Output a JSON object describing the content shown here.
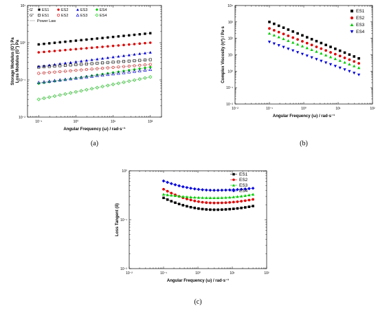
{
  "colors": {
    "ES1": "#000000",
    "ES2": "#e00000",
    "ES3": "#00cc00",
    "ES4": "#0000dd"
  },
  "chart_data": [
    {
      "id": "a",
      "type": "scatter",
      "caption": "(a)",
      "xlabel": "Angular Frequency (ω) / rad·s⁻¹",
      "ylabel_lines": [
        "Storage Modulus (G') Pa",
        "Loss Modulus (G\") Pa"
      ],
      "x_scale": "log",
      "y_scale": "log",
      "xlim": [
        0.05,
        200
      ],
      "ylim": [
        0.01,
        10
      ],
      "x_ticks": [
        "10⁻¹",
        "10⁰",
        "10¹",
        "10²"
      ],
      "y_ticks": [
        "10⁻²",
        "10⁻¹",
        "10⁰",
        "10¹"
      ],
      "legend": {
        "row_labels": [
          "G'",
          "G\""
        ],
        "series_names": [
          "ES1",
          "ES2",
          "ES3",
          "ES4"
        ],
        "power_law_label": "Power Law",
        "placement": "top-left"
      },
      "series": [
        {
          "name": "ES1",
          "modulus": "G'",
          "marker": "square-filled",
          "color": "#000000",
          "x_range": [
            0.1,
            100
          ],
          "y_range": [
            0.9,
            1.8
          ]
        },
        {
          "name": "ES2",
          "modulus": "G'",
          "marker": "circle-filled",
          "color": "#e00000",
          "x_range": [
            0.1,
            100
          ],
          "y_range": [
            0.55,
            1.0
          ]
        },
        {
          "name": "ES3",
          "modulus": "G'",
          "marker": "triangle-filled",
          "color": "#0000dd",
          "x_range": [
            0.1,
            100
          ],
          "y_range": [
            0.23,
            0.55
          ]
        },
        {
          "name": "ES4",
          "modulus": "G'",
          "marker": "diamond-filled",
          "color": "#00cc00",
          "x_range": [
            0.1,
            100
          ],
          "y_range": [
            0.08,
            0.22
          ]
        },
        {
          "name": "ES1",
          "modulus": "G\"",
          "marker": "square-open",
          "color": "#000000",
          "x_range": [
            0.1,
            100
          ],
          "y_range": [
            0.22,
            0.35
          ]
        },
        {
          "name": "ES2",
          "modulus": "G\"",
          "marker": "circle-open",
          "color": "#e00000",
          "x_range": [
            0.1,
            100
          ],
          "y_range": [
            0.15,
            0.26
          ]
        },
        {
          "name": "ES3",
          "modulus": "G\"",
          "marker": "triangle-open",
          "color": "#0000dd",
          "x_range": [
            0.1,
            100
          ],
          "y_range": [
            0.085,
            0.19
          ]
        },
        {
          "name": "ES4",
          "modulus": "G\"",
          "marker": "diamond-open",
          "color": "#00cc00",
          "x_range": [
            0.1,
            100
          ],
          "y_range": [
            0.03,
            0.12
          ]
        }
      ]
    },
    {
      "id": "b",
      "type": "scatter",
      "caption": "(b)",
      "xlabel": "Angular Frequency (ω) / rad·s⁻¹",
      "ylabel": "Complex Viscosity (η*) / Pa·s",
      "x_scale": "log",
      "y_scale": "log",
      "xlim": [
        0.01,
        100
      ],
      "ylim": [
        0.01,
        10000
      ],
      "x_ticks": [
        "10⁻²",
        "10⁻¹",
        "10⁰",
        "10¹",
        "10²"
      ],
      "y_ticks": [
        "10⁻²",
        "10⁻¹",
        "10⁰",
        "10¹",
        "10²",
        "10³",
        "10⁴"
      ],
      "legend": {
        "placement": "top-right"
      },
      "series": [
        {
          "name": "ES1",
          "marker": "square-filled",
          "color": "#000000",
          "x_range": [
            0.1,
            40
          ],
          "y_range": [
            1000,
            6
          ]
        },
        {
          "name": "ES2",
          "marker": "circle-filled",
          "color": "#e00000",
          "x_range": [
            0.1,
            40
          ],
          "y_range": [
            400,
            3
          ]
        },
        {
          "name": "ES3",
          "marker": "triangle-filled",
          "color": "#00cc00",
          "x_range": [
            0.1,
            40
          ],
          "y_range": [
            200,
            1.6
          ]
        },
        {
          "name": "ES4",
          "marker": "triangle-down-filled",
          "color": "#0000dd",
          "x_range": [
            0.1,
            40
          ],
          "y_range": [
            60,
            0.6
          ]
        }
      ]
    },
    {
      "id": "c",
      "type": "line",
      "caption": "(c)",
      "xlabel": "Angular Frequency (ω) / rad·s⁻¹",
      "ylabel": "Loss Tangent (δ)",
      "x_scale": "log",
      "y_scale": "log",
      "xlim": [
        0.01,
        100
      ],
      "ylim": [
        0.01,
        1
      ],
      "x_ticks": [
        "10⁻²",
        "10⁻¹",
        "10⁰",
        "10¹",
        "10²"
      ],
      "y_ticks": [
        "10⁻²",
        "10⁻¹",
        "10⁰"
      ],
      "legend": {
        "placement": "top-right"
      },
      "series": [
        {
          "name": "ES1",
          "marker": "square-filled",
          "color": "#000000",
          "x_range": [
            0.1,
            40
          ],
          "y_first": 0.28,
          "y_min": 0.16,
          "y_last": 0.19
        },
        {
          "name": "ES2",
          "marker": "circle-filled",
          "color": "#e00000",
          "x_range": [
            0.1,
            40
          ],
          "y_first": 0.42,
          "y_min": 0.22,
          "y_last": 0.26
        },
        {
          "name": "ES3",
          "marker": "triangle-filled",
          "color": "#00cc00",
          "x_range": [
            0.1,
            40
          ],
          "y_first": 0.33,
          "y_min": 0.28,
          "y_last": 0.33
        },
        {
          "name": "ES4",
          "marker": "diamond-filled",
          "color": "#0000dd",
          "x_range": [
            0.1,
            40
          ],
          "y_first": 0.62,
          "y_min": 0.4,
          "y_last": 0.44
        }
      ]
    }
  ]
}
